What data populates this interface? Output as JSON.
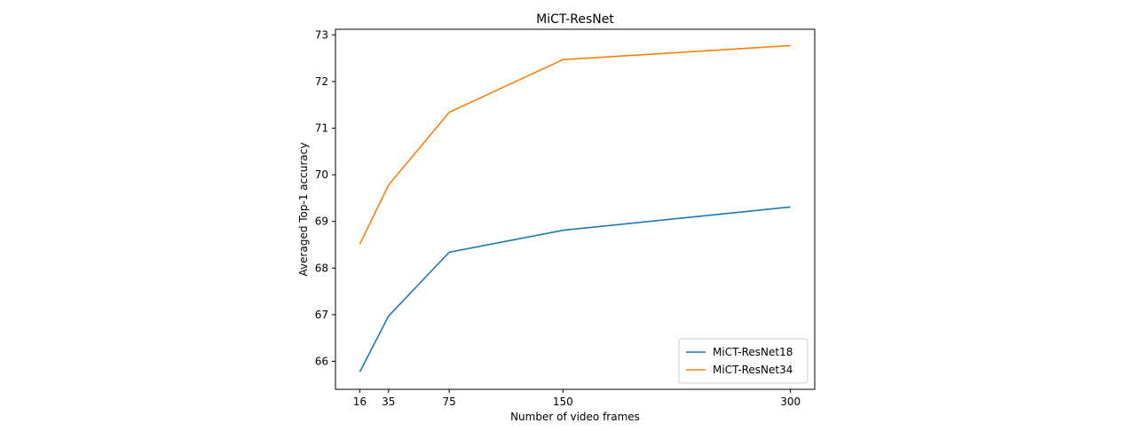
{
  "chart_data": {
    "type": "line",
    "title": "MiCT-ResNet",
    "xlabel": "Number of video frames",
    "ylabel": "Averaged Top-1 accuracy",
    "x": [
      16,
      35,
      75,
      150,
      300
    ],
    "xticks": [
      16,
      35,
      75,
      150,
      300
    ],
    "xlim": [
      0,
      316
    ],
    "yticks": [
      66,
      67,
      68,
      69,
      70,
      71,
      72,
      73
    ],
    "ylim": [
      65.4,
      73.12
    ],
    "grid": false,
    "legend_position": "lower-right",
    "series": [
      {
        "name": "MiCT-ResNet18",
        "color": "#1f77b4",
        "values": [
          65.77,
          66.97,
          68.34,
          68.81,
          69.31
        ]
      },
      {
        "name": "MiCT-ResNet34",
        "color": "#ff7f0e",
        "values": [
          68.51,
          69.78,
          71.34,
          72.47,
          72.77
        ]
      }
    ]
  }
}
